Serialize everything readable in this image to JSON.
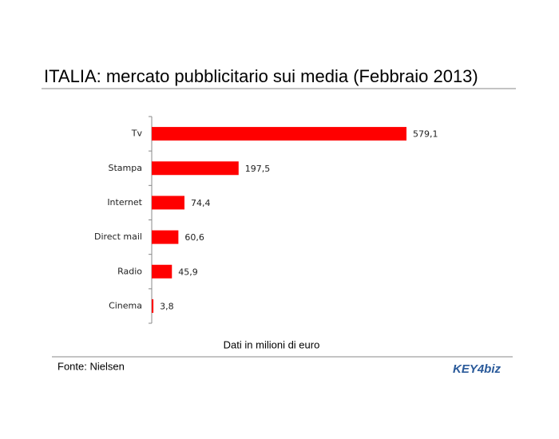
{
  "chart_data": {
    "type": "hbar",
    "title": "ITALIA: mercato pubblicitario sui media (Febbraio 2013)",
    "categories": [
      "Tv",
      "Stampa",
      "Internet",
      "Direct mail",
      "Radio",
      "Cinema"
    ],
    "values": [
      579.1,
      197.5,
      74.4,
      60.6,
      45.9,
      3.8
    ],
    "value_labels": [
      "579,1",
      "197,5",
      "74,4",
      "60,6",
      "45,9",
      "3,8"
    ],
    "color": "#ff0000",
    "xlabel": "Dati in milioni di euro",
    "source": "Fonte: Nielsen",
    "logo": "KEY4biz"
  }
}
